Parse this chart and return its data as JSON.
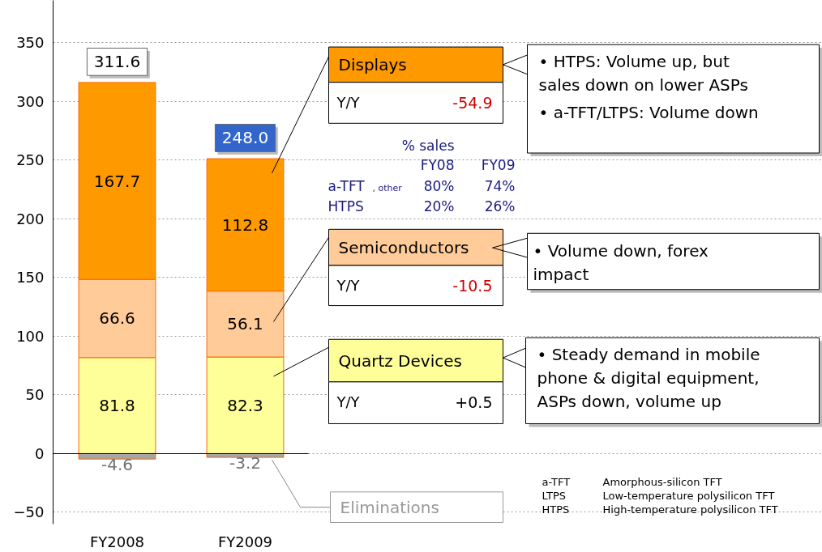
{
  "chart_data": {
    "type": "bar",
    "stacked": true,
    "data_labels": true,
    "grid": "y",
    "categories": [
      "FY2008",
      "FY2009"
    ],
    "series": [
      {
        "name": "Eliminations",
        "color": "#a6a6a6",
        "values": [
          -4.6,
          -3.2
        ]
      },
      {
        "name": "Quartz Devices",
        "color": "#ffff99",
        "values": [
          81.8,
          82.3
        ]
      },
      {
        "name": "Semiconductors",
        "color": "#ffcc99",
        "values": [
          66.6,
          56.1
        ]
      },
      {
        "name": "Displays",
        "color": "#ff9900",
        "values": [
          167.7,
          112.8
        ]
      }
    ],
    "totals": [
      "311.6",
      "248.0"
    ],
    "ylim": [
      -60,
      386
    ],
    "yticks": [
      -50,
      0,
      50,
      100,
      150,
      200,
      250,
      300,
      350
    ],
    "annotations": [
      "Y/Y",
      "-54.9",
      "Y/Y",
      "-10.5",
      "Y/Y",
      "+0.5",
      "• HTPS: Volume up, but\n   sales down on lower ASPs",
      "• a-TFT/LTPS: Volume down",
      "• Volume down, forex\n   impact",
      "• Steady demand in mobile\n   phone & digital equipment,\n   ASPs down, volume up",
      "% sales",
      "FY08",
      "FY09",
      "a-TFT",
      ", other",
      "80%",
      "74%",
      "HTPS",
      "20%",
      "26%",
      "a-TFT",
      "Amorphous-silicon TFT",
      "LTPS",
      "Low-temperature polysilicon TFT",
      "HTPS",
      "High-temperature polysilicon TFT"
    ]
  }
}
